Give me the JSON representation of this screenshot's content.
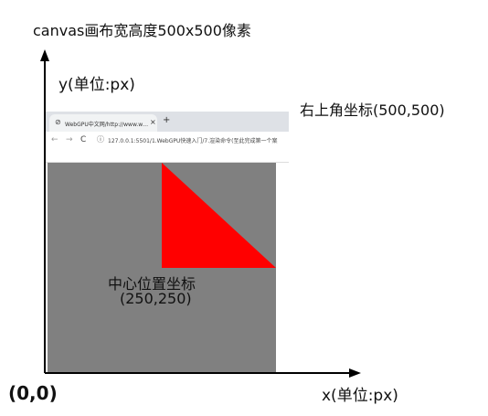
{
  "title": "canvas画布宽高度500x500像素",
  "y_axis_label": "y(单位:px)",
  "x_axis_label": "x(单位:px)",
  "origin_label": "(0,0)",
  "corner_label": "右上角坐标(500,500)",
  "center_label": {
    "line1": "中心位置坐标",
    "line2": "(250,250)"
  },
  "browser": {
    "tab_icon": "globe-icon",
    "tab_title": "WebGPU中文网/http://www.w…",
    "close_glyph": "×",
    "new_tab_glyph": "+",
    "back_glyph": "←",
    "forward_glyph": "→",
    "reload_glyph": "C",
    "info_glyph": "ⓘ",
    "url": "127.0.0.1:5501/1.WebGPU快速入门/7.渲染命令(至此完成第一个案"
  },
  "colors": {
    "canvas_background": "#808080",
    "triangle_fill": "#ff0000",
    "axis": "#000000"
  }
}
